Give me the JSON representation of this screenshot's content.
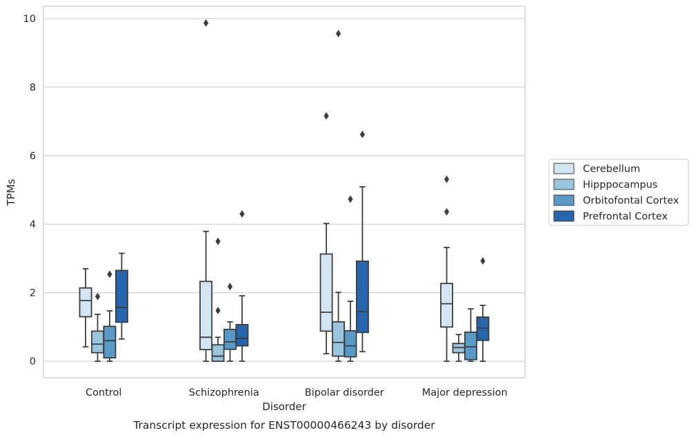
{
  "chart_data": {
    "type": "box",
    "title": "",
    "caption": "Transcript expression for ENST00000466243 by disorder",
    "xlabel": "Disorder",
    "ylabel": "TPMs",
    "ylim": [
      -0.48,
      10.36
    ],
    "yticks": [
      0,
      2,
      4,
      6,
      8,
      10
    ],
    "grid": "horizontal",
    "legend_position": "right",
    "categories": [
      "Control",
      "Schizophrenia",
      "Bipolar disorder",
      "Major depression"
    ],
    "series": [
      {
        "name": "Cerebellum",
        "color": "#d3e4f3",
        "boxes": [
          {
            "whislo": 0.42,
            "q1": 1.3,
            "median": 1.77,
            "q3": 2.14,
            "whishi": 2.7,
            "fliers": []
          },
          {
            "whislo": 0.0,
            "q1": 0.34,
            "median": 0.7,
            "q3": 2.33,
            "whishi": 3.79,
            "fliers": [
              9.87
            ]
          },
          {
            "whislo": 0.22,
            "q1": 0.88,
            "median": 1.43,
            "q3": 3.13,
            "whishi": 4.02,
            "fliers": [
              7.16
            ]
          },
          {
            "whislo": 0.0,
            "q1": 1.0,
            "median": 1.68,
            "q3": 2.27,
            "whishi": 3.32,
            "fliers": [
              4.36,
              5.31
            ]
          }
        ]
      },
      {
        "name": "Hipppocampus",
        "color": "#9ac5df",
        "boxes": [
          {
            "whislo": 0.0,
            "q1": 0.25,
            "median": 0.5,
            "q3": 0.88,
            "whishi": 1.37,
            "fliers": [
              1.89
            ]
          },
          {
            "whislo": 0.0,
            "q1": 0.0,
            "median": 0.15,
            "q3": 0.48,
            "whishi": 0.7,
            "fliers": [
              1.48,
              3.5
            ]
          },
          {
            "whislo": 0.0,
            "q1": 0.15,
            "median": 0.55,
            "q3": 1.15,
            "whishi": 2.01,
            "fliers": [
              9.56
            ]
          },
          {
            "whislo": 0.0,
            "q1": 0.25,
            "median": 0.4,
            "q3": 0.52,
            "whishi": 0.78,
            "fliers": []
          }
        ]
      },
      {
        "name": "Orbitofontal Cortex",
        "color": "#5799c7",
        "boxes": [
          {
            "whislo": 0.0,
            "q1": 0.1,
            "median": 0.6,
            "q3": 1.02,
            "whishi": 1.47,
            "fliers": [
              2.54
            ]
          },
          {
            "whislo": 0.0,
            "q1": 0.35,
            "median": 0.57,
            "q3": 0.93,
            "whishi": 1.15,
            "fliers": [
              2.18
            ]
          },
          {
            "whislo": 0.0,
            "q1": 0.13,
            "median": 0.45,
            "q3": 0.89,
            "whishi": 1.75,
            "fliers": [
              4.73
            ]
          },
          {
            "whislo": 0.0,
            "q1": 0.05,
            "median": 0.42,
            "q3": 0.85,
            "whishi": 1.53,
            "fliers": []
          }
        ]
      },
      {
        "name": "Prefrontal Cortex",
        "color": "#2566ac",
        "boxes": [
          {
            "whislo": 0.65,
            "q1": 1.14,
            "median": 1.57,
            "q3": 2.65,
            "whishi": 3.15,
            "fliers": []
          },
          {
            "whislo": 0.0,
            "q1": 0.45,
            "median": 0.67,
            "q3": 1.07,
            "whishi": 1.91,
            "fliers": [
              4.3
            ]
          },
          {
            "whislo": 0.28,
            "q1": 0.84,
            "median": 1.45,
            "q3": 2.92,
            "whishi": 5.09,
            "fliers": [
              6.62
            ]
          },
          {
            "whislo": 0.0,
            "q1": 0.61,
            "median": 0.97,
            "q3": 1.29,
            "whishi": 1.63,
            "fliers": [
              2.93
            ]
          }
        ]
      }
    ]
  }
}
